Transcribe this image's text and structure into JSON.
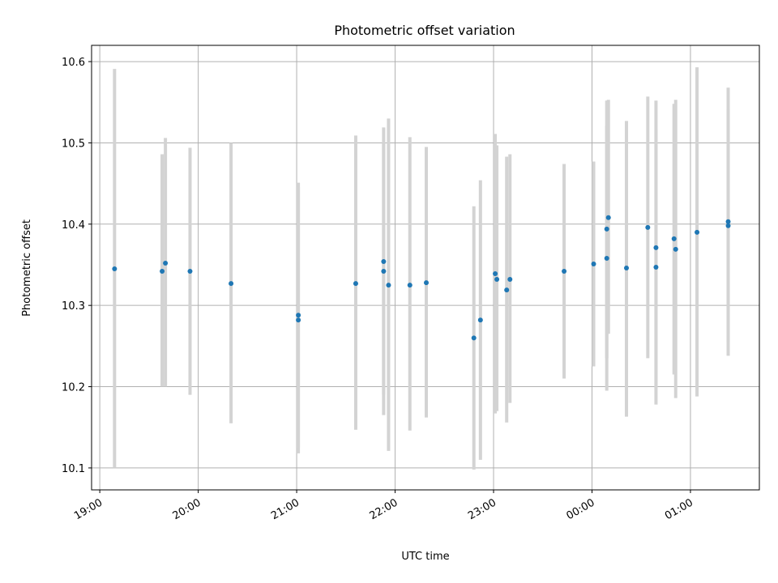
{
  "chart_data": {
    "type": "scatter",
    "title": "Photometric offset variation",
    "xlabel": "UTC time",
    "ylabel": "Photometric offset",
    "x_unit": "UTC time (HH:MM)",
    "xlim": [
      "18:55",
      "01:42"
    ],
    "ylim": [
      10.073,
      10.62
    ],
    "x_ticks": [
      "19:00",
      "20:00",
      "21:00",
      "22:00",
      "23:00",
      "00:00",
      "01:00"
    ],
    "y_ticks": [
      "10.1",
      "10.2",
      "10.3",
      "10.4",
      "10.5",
      "10.6"
    ],
    "grid": true,
    "error_bars": true,
    "colors": {
      "points": "#1f77b4",
      "error_bars": "#d3d3d3",
      "grid": "#b0b0b0"
    },
    "series": [
      {
        "x": [
          "19:09",
          "19:38",
          "19:40",
          "19:55",
          "20:20",
          "21:01",
          "21:01",
          "21:36",
          "21:53",
          "21:53",
          "21:56",
          "22:09",
          "22:19",
          "22:48",
          "22:52",
          "23:01",
          "23:02",
          "23:08",
          "23:10",
          "23:43",
          "00:01",
          "00:09",
          "00:09",
          "00:10",
          "00:21",
          "00:34",
          "00:39",
          "00:39",
          "00:50",
          "00:51",
          "01:04",
          "01:23",
          "01:23"
        ],
        "y": [
          10.345,
          10.342,
          10.352,
          10.342,
          10.327,
          10.288,
          10.282,
          10.327,
          10.342,
          10.354,
          10.325,
          10.325,
          10.328,
          10.26,
          10.282,
          10.339,
          10.332,
          10.319,
          10.332,
          10.342,
          10.351,
          10.358,
          10.394,
          10.408,
          10.346,
          10.396,
          10.371,
          10.347,
          10.382,
          10.369,
          10.39,
          10.403,
          10.398
        ],
        "y_low": [
          10.1,
          10.2,
          10.2,
          10.19,
          10.155,
          10.125,
          10.118,
          10.147,
          10.165,
          10.19,
          10.121,
          10.146,
          10.162,
          10.098,
          10.11,
          10.167,
          10.17,
          10.156,
          10.18,
          10.21,
          10.225,
          10.195,
          10.235,
          10.265,
          10.163,
          10.235,
          10.178,
          10.198,
          10.215,
          10.186,
          10.188,
          10.238,
          10.255
        ],
        "y_high": [
          10.591,
          10.486,
          10.506,
          10.494,
          10.5,
          10.451,
          10.446,
          10.509,
          10.519,
          10.5,
          10.53,
          10.507,
          10.495,
          10.422,
          10.454,
          10.511,
          10.497,
          10.483,
          10.486,
          10.474,
          10.477,
          10.521,
          10.552,
          10.553,
          10.527,
          10.557,
          10.552,
          10.517,
          10.548,
          10.553,
          10.593,
          10.568,
          10.541
        ]
      }
    ]
  }
}
